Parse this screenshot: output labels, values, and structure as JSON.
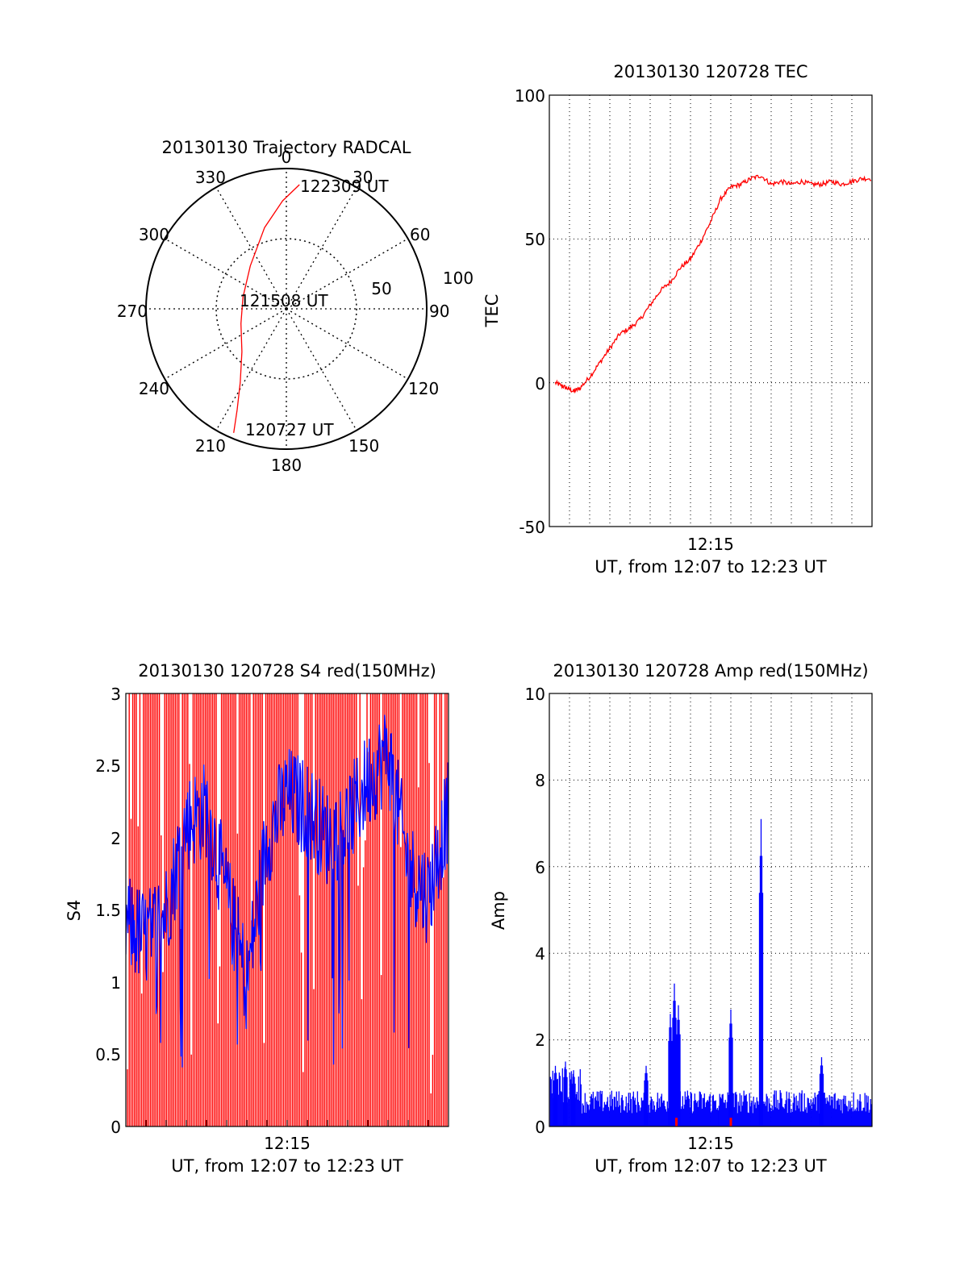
{
  "charts": {
    "polar": {
      "title": "20130130 Trajectory RADCAL",
      "azimuth_labels": [
        "0",
        "30",
        "60",
        "90",
        "120",
        "150",
        "180",
        "210",
        "240",
        "270",
        "300",
        "330"
      ],
      "radial_labels": [
        "50",
        "100"
      ],
      "annotations": [
        "122309 UT",
        "121508 UT",
        "120727 UT"
      ]
    },
    "tec": {
      "title": "20130130 120728 TEC",
      "ylabel": "TEC",
      "xlabel": "UT, from 12:07 to 12:23 UT",
      "xtick_label": "12:15",
      "yticks": [
        "100",
        "50",
        "0",
        "-50"
      ]
    },
    "s4": {
      "title": "20130130 120728 S4 red(150MHz)",
      "ylabel": "S4",
      "xlabel": "UT, from 12:07 to 12:23 UT",
      "xtick_label": "12:15",
      "yticks": [
        "3",
        "2.5",
        "2",
        "1.5",
        "1",
        "0.5",
        "0"
      ]
    },
    "amp": {
      "title": "20130130 120728 Amp red(150MHz)",
      "ylabel": "Amp",
      "xlabel": "UT, from 12:07 to 12:23 UT",
      "xtick_label": "12:15",
      "yticks": [
        "10",
        "8",
        "6",
        "4",
        "2",
        "0"
      ]
    }
  },
  "chart_data": [
    {
      "type": "scatter",
      "subtype": "polar",
      "title": "20130130 Trajectory RADCAL",
      "theta_direction": "clockwise",
      "theta_zero": "top",
      "rlim": [
        0,
        100
      ],
      "grid": true,
      "series": [
        {
          "color": "#ff0000",
          "points": [
            {
              "az": 203,
              "r": 96
            },
            {
              "az": 206,
              "r": 80
            },
            {
              "az": 212,
              "r": 62
            },
            {
              "az": 226,
              "r": 44
            },
            {
              "az": 252,
              "r": 34
            },
            {
              "az": 285,
              "r": 32
            },
            {
              "az": 320,
              "r": 40
            },
            {
              "az": 345,
              "r": 60
            },
            {
              "az": 358,
              "r": 77
            },
            {
              "az": 6,
              "r": 89
            }
          ]
        }
      ],
      "annotations": [
        {
          "text": "120727 UT",
          "az": 203,
          "r": 96
        },
        {
          "text": "121508 UT",
          "az": 285,
          "r": 32
        },
        {
          "text": "122309 UT",
          "az": 6,
          "r": 89
        }
      ]
    },
    {
      "type": "line",
      "title": "20130130 120728 TEC",
      "xlabel": "UT, from 12:07 to 12:23 UT",
      "ylabel": "TEC",
      "x_unit": "minutes after 12:07 UT",
      "xlim": [
        0,
        16
      ],
      "ylim": [
        -50,
        100
      ],
      "grid": true,
      "series": [
        {
          "color": "#ff0000",
          "x": [
            0.3,
            0.6,
            0.9,
            1.2,
            1.5,
            2.0,
            2.5,
            3.0,
            3.5,
            4.0,
            4.5,
            5.0,
            5.5,
            6.0,
            6.5,
            7.0,
            7.5,
            8.0,
            8.5,
            9.0,
            9.5,
            10.0,
            10.5,
            11.0,
            11.5,
            12.0,
            12.5,
            13.0,
            13.5,
            14.0,
            14.5,
            15.0,
            15.5,
            16.0
          ],
          "y": [
            0,
            -1,
            -2,
            -3,
            -2,
            2,
            7,
            12,
            17,
            19,
            22,
            27,
            32,
            35,
            40,
            43,
            49,
            56,
            64,
            68,
            69,
            71,
            72,
            69,
            70,
            69,
            70,
            69,
            69,
            70,
            69,
            70,
            71,
            71
          ]
        }
      ]
    },
    {
      "type": "line",
      "title": "20130130 120728 S4 red(150MHz)",
      "xlabel": "UT, from 12:07 to 12:23 UT",
      "ylabel": "S4",
      "x_unit": "minutes after 12:07 UT",
      "xlim": [
        0,
        16
      ],
      "ylim": [
        0,
        3
      ],
      "grid": false,
      "series": [
        {
          "color": "#ff0000",
          "description_values": "dense vertical lines spanning 0 to 3",
          "y_range": [
            0,
            3
          ]
        },
        {
          "color": "#0000ff",
          "x": [
            0,
            1,
            2,
            3,
            4,
            5,
            6,
            7,
            8,
            9,
            10,
            11,
            12,
            13,
            14,
            15,
            16
          ],
          "y": [
            1.4,
            1.3,
            1.5,
            2.1,
            2.2,
            1.6,
            1.0,
            2.0,
            2.3,
            2.2,
            2.0,
            2.1,
            2.4,
            2.6,
            1.8,
            1.6,
            2.2
          ]
        }
      ]
    },
    {
      "type": "bar",
      "title": "20130130 120728 Amp red(150MHz)",
      "xlabel": "UT, from 12:07 to 12:23 UT",
      "ylabel": "Amp",
      "x_unit": "minutes after 12:07 UT",
      "xlim": [
        0,
        16
      ],
      "ylim": [
        0,
        10
      ],
      "grid": true,
      "series": [
        {
          "color": "#0000ff",
          "baseline": 0.6,
          "spikes": [
            {
              "x": 0.3,
              "y": 1.4
            },
            {
              "x": 0.8,
              "y": 1.5
            },
            {
              "x": 1.2,
              "y": 1.3
            },
            {
              "x": 4.8,
              "y": 1.4
            },
            {
              "x": 6.0,
              "y": 2.6
            },
            {
              "x": 6.2,
              "y": 3.3
            },
            {
              "x": 6.4,
              "y": 2.8
            },
            {
              "x": 9.0,
              "y": 2.7
            },
            {
              "x": 10.5,
              "y": 7.1
            },
            {
              "x": 13.5,
              "y": 1.6
            }
          ]
        },
        {
          "color": "#ff0000",
          "baseline": 0.0,
          "spikes": [
            {
              "x": 6.3,
              "y": 0.2
            },
            {
              "x": 9.0,
              "y": 0.2
            }
          ]
        }
      ]
    }
  ]
}
